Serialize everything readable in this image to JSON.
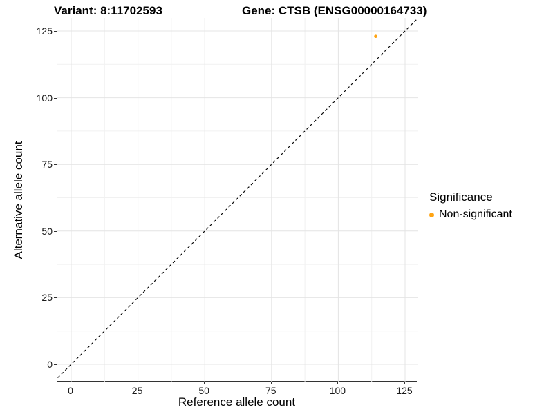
{
  "title": {
    "variant": "Variant: 8:11702593",
    "gene": "Gene: CTSB (ENSG00000164733)"
  },
  "axes": {
    "x": {
      "label": "Reference allele count",
      "ticks": [
        "0",
        "25",
        "50",
        "75",
        "100",
        "125"
      ]
    },
    "y": {
      "label": "Alternative allele count",
      "ticks": [
        "0",
        "25",
        "50",
        "75",
        "100",
        "125"
      ]
    }
  },
  "legend": {
    "title": "Significance",
    "items": [
      {
        "label": "Non-significant",
        "color": "#FFA413"
      }
    ]
  },
  "colors": {
    "point": "#FFA413",
    "grid_major": "#e4e4e4",
    "grid_minor": "#f1f1f1",
    "axis_line": "#333333",
    "reference_line": "#0a0a0a",
    "background": "#ffffff"
  },
  "chart_data": {
    "type": "scatter",
    "title": "Variant: 8:11702593    Gene: CTSB (ENSG00000164733)",
    "xlabel": "Reference allele count",
    "ylabel": "Alternative allele count",
    "xlim": [
      -6.5,
      130
    ],
    "ylim": [
      -6.5,
      130
    ],
    "x_ticks": [
      0,
      25,
      50,
      75,
      100,
      125
    ],
    "y_ticks": [
      0,
      25,
      50,
      75,
      100,
      125
    ],
    "minor_tick_step": 12.5,
    "grid": true,
    "legend_position": "right",
    "legend_title": "Significance",
    "series": [
      {
        "name": "Non-significant",
        "color": "#FFA413",
        "points": [
          {
            "x": 114,
            "y": 123
          }
        ]
      }
    ],
    "reference_line": {
      "type": "identity y=x",
      "style": "dashed",
      "color": "#0a0a0a"
    }
  }
}
